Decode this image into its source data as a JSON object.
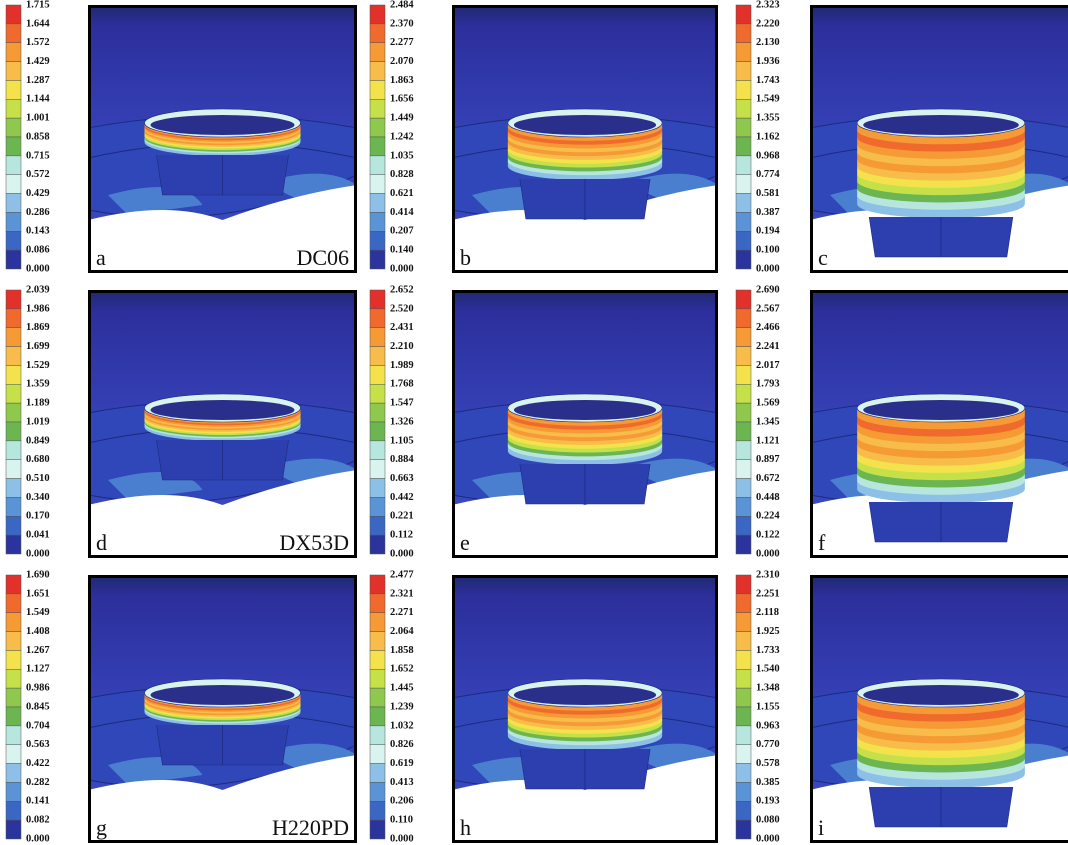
{
  "legend_colors": [
    "#e2302a",
    "#ef6a2c",
    "#f59a34",
    "#f8bc4a",
    "#f3e24c",
    "#c6e04a",
    "#8ec84c",
    "#6cb652",
    "#b6e6de",
    "#d9f3ef",
    "#8cc0e6",
    "#5a94d6",
    "#3a66c4",
    "#2a349c"
  ],
  "panels": [
    {
      "letter": "a",
      "material": "DC06",
      "legend": [
        "1.715",
        "1.644",
        "1.572",
        "1.429",
        "1.287",
        "1.144",
        "1.001",
        "0.858",
        "0.715",
        "0.572",
        "0.429",
        "0.286",
        "0.143",
        "0.086",
        "0.000"
      ]
    },
    {
      "letter": "b",
      "legend": [
        "2.484",
        "2.370",
        "2.277",
        "2.070",
        "1.863",
        "1.656",
        "1.449",
        "1.242",
        "1.035",
        "0.828",
        "0.621",
        "0.414",
        "0.207",
        "0.140",
        "0.000"
      ]
    },
    {
      "letter": "c",
      "legend": [
        "2.323",
        "2.220",
        "2.130",
        "1.936",
        "1.743",
        "1.549",
        "1.355",
        "1.162",
        "0.968",
        "0.774",
        "0.581",
        "0.387",
        "0.194",
        "0.100",
        "0.000"
      ]
    },
    {
      "letter": "d",
      "material": "DX53D",
      "legend": [
        "2.039",
        "1.986",
        "1.869",
        "1.699",
        "1.529",
        "1.359",
        "1.189",
        "1.019",
        "0.849",
        "0.680",
        "0.510",
        "0.340",
        "0.170",
        "0.041",
        "0.000"
      ]
    },
    {
      "letter": "e",
      "legend": [
        "2.652",
        "2.520",
        "2.431",
        "2.210",
        "1.989",
        "1.768",
        "1.547",
        "1.326",
        "1.105",
        "0.884",
        "0.663",
        "0.442",
        "0.221",
        "0.112",
        "0.000"
      ]
    },
    {
      "letter": "f",
      "legend": [
        "2.690",
        "2.567",
        "2.466",
        "2.241",
        "2.017",
        "1.793",
        "1.569",
        "1.345",
        "1.121",
        "0.897",
        "0.672",
        "0.448",
        "0.224",
        "0.122",
        "0.000"
      ]
    },
    {
      "letter": "g",
      "material": "H220PD",
      "legend": [
        "1.690",
        "1.651",
        "1.549",
        "1.408",
        "1.267",
        "1.127",
        "0.986",
        "0.845",
        "0.704",
        "0.563",
        "0.422",
        "0.282",
        "0.141",
        "0.082",
        "0.000"
      ]
    },
    {
      "letter": "h",
      "legend": [
        "2.477",
        "2.321",
        "2.271",
        "2.064",
        "1.858",
        "1.652",
        "1.445",
        "1.239",
        "1.032",
        "0.826",
        "0.619",
        "0.413",
        "0.206",
        "0.110",
        "0.000"
      ]
    },
    {
      "letter": "i",
      "legend": [
        "2.310",
        "2.251",
        "2.118",
        "1.925",
        "1.733",
        "1.540",
        "1.348",
        "1.155",
        "0.963",
        "0.770",
        "0.578",
        "0.385",
        "0.193",
        "0.080",
        "0.000"
      ]
    }
  ]
}
